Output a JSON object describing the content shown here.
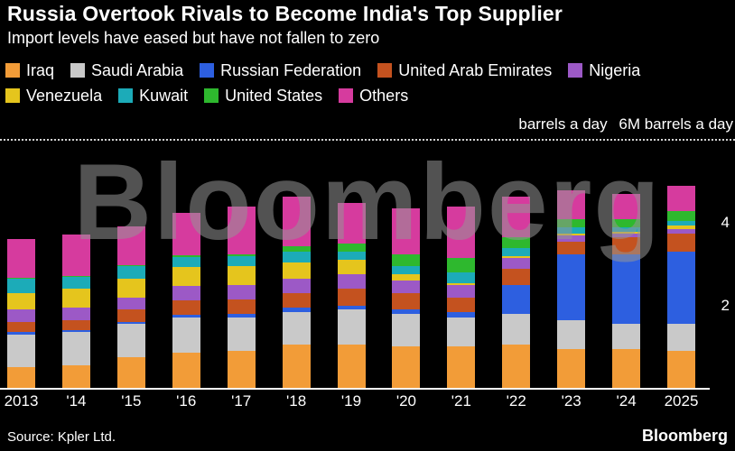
{
  "header": {
    "title": "Russia Overtook Rivals to Become India's Top Supplier",
    "subtitle": "Import levels have eased but have not fallen to zero"
  },
  "axis": {
    "unit_label_left": "barrels a day",
    "unit_label_right": "6M barrels a day",
    "y_ticks": [
      {
        "label": "4",
        "value": 4
      },
      {
        "label": "2",
        "value": 2
      }
    ],
    "top_reference_value": 6
  },
  "watermark": {
    "text": "Bloomberg"
  },
  "footer": {
    "source": "Source: Kpler Ltd.",
    "brand": "Bloomberg"
  },
  "chart_data": {
    "type": "bar",
    "stacked": true,
    "title": "Russia Overtook Rivals to Become India's Top Supplier",
    "subtitle": "Import levels have eased but have not fallen to zero",
    "ylabel": "6M barrels a day",
    "xlabel": "",
    "ylim": [
      0,
      6
    ],
    "unit": "M barrels a day",
    "grid": "top dotted reference line at 6M only",
    "legend_position": "top",
    "categories": [
      "2013",
      "'14",
      "'15",
      "'16",
      "'17",
      "'18",
      "'19",
      "'20",
      "'21",
      "'22",
      "'23",
      "'24",
      "2025"
    ],
    "series": [
      {
        "name": "Iraq",
        "color": "#F29C38",
        "values": [
          0.5,
          0.55,
          0.75,
          0.85,
          0.9,
          1.05,
          1.05,
          1.0,
          1.0,
          1.05,
          0.95,
          0.95,
          0.9
        ]
      },
      {
        "name": "Saudi Arabia",
        "color": "#C9C9C9",
        "values": [
          0.8,
          0.8,
          0.8,
          0.85,
          0.8,
          0.8,
          0.85,
          0.8,
          0.7,
          0.75,
          0.7,
          0.6,
          0.65
        ]
      },
      {
        "name": "Russian Federation",
        "color": "#2D5FE0",
        "values": [
          0.05,
          0.05,
          0.05,
          0.08,
          0.1,
          0.1,
          0.1,
          0.1,
          0.15,
          0.7,
          1.6,
          1.7,
          1.75
        ]
      },
      {
        "name": "United Arab Emirates",
        "color": "#C4521F",
        "values": [
          0.25,
          0.25,
          0.3,
          0.35,
          0.35,
          0.35,
          0.4,
          0.4,
          0.35,
          0.4,
          0.3,
          0.4,
          0.45
        ]
      },
      {
        "name": "Nigeria",
        "color": "#9C59C6",
        "values": [
          0.3,
          0.3,
          0.3,
          0.35,
          0.35,
          0.35,
          0.35,
          0.3,
          0.3,
          0.25,
          0.15,
          0.1,
          0.1
        ]
      },
      {
        "name": "Venezuela",
        "color": "#E5C51D",
        "values": [
          0.4,
          0.45,
          0.45,
          0.45,
          0.45,
          0.4,
          0.35,
          0.15,
          0.05,
          0.05,
          0.05,
          0.05,
          0.1
        ]
      },
      {
        "name": "Kuwait",
        "color": "#1CABB8",
        "values": [
          0.35,
          0.3,
          0.3,
          0.25,
          0.25,
          0.25,
          0.2,
          0.2,
          0.25,
          0.2,
          0.15,
          0.1,
          0.1
        ]
      },
      {
        "name": "United States",
        "color": "#2EB82E",
        "values": [
          0.02,
          0.02,
          0.02,
          0.03,
          0.05,
          0.15,
          0.2,
          0.3,
          0.35,
          0.25,
          0.2,
          0.2,
          0.25
        ]
      },
      {
        "name": "Others",
        "color": "#D63B9E",
        "values": [
          0.95,
          1.0,
          0.95,
          1.05,
          1.15,
          1.2,
          1.0,
          1.1,
          1.25,
          1.0,
          0.7,
          0.6,
          0.6
        ]
      }
    ]
  }
}
